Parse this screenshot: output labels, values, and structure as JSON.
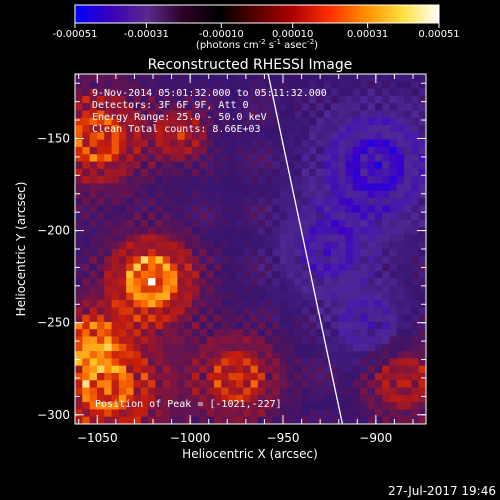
{
  "chart_data": {
    "type": "heatmap",
    "title": "Reconstructed RHESSI Image",
    "xlabel": "Heliocentric X (arcsec)",
    "ylabel": "Heliocentric Y (arcsec)",
    "xlim": [
      -1062,
      -873
    ],
    "ylim": [
      -305,
      -115
    ],
    "x_ticks": [
      -1050,
      -1000,
      -950,
      -900
    ],
    "x_tick_labels": [
      "−1050",
      "−1000",
      "−950",
      "−900"
    ],
    "y_ticks": [
      -150,
      -200,
      -250,
      -300
    ],
    "y_tick_labels": [
      "−150",
      "−200",
      "−250",
      "−300"
    ],
    "colorbar": {
      "ticks": [
        -0.00051,
        -0.00031,
        -0.0001,
        0.0001,
        0.00031,
        0.00051
      ],
      "tick_labels": [
        "-0.00051",
        "-0.00031",
        "-0.00010",
        "0.00010",
        "0.00031",
        "0.00051"
      ],
      "unit_main": "(photons cm",
      "unit_sup1": "-2",
      "unit_mid": " s",
      "unit_sup2": "-1",
      "unit_mid2": " asec",
      "unit_sup3": "-2",
      "unit_end": ")",
      "colors": [
        "#0000ff",
        "#3a00b8",
        "#5a2a8a",
        "#2a0022",
        "#000000",
        "#5a0000",
        "#b00000",
        "#ff3000",
        "#ff9000",
        "#ffe040",
        "#ffffff"
      ]
    },
    "annotations": {
      "line1": "9-Nov-2014 05:01:32.000 to 05:11:32.000",
      "line2": "Detectors: 3F 6F 9F, Att 0",
      "line3": "Energy Range: 25.0 - 50.0 keV",
      "line4": "Clean    Total counts: 8.66E+03",
      "peak": "Position of Peak = [-1021,-227]"
    },
    "peak_position": [
      -1021,
      -227
    ],
    "limb_line": [
      [
        -958,
        -115
      ],
      [
        -918,
        -305
      ]
    ],
    "hot_spots": [
      {
        "x": -1021,
        "y": -227,
        "amp": 1.0,
        "r": 16
      },
      {
        "x": -1050,
        "y": -150,
        "amp": 0.75,
        "r": 18
      },
      {
        "x": -1005,
        "y": -148,
        "amp": 0.55,
        "r": 10
      },
      {
        "x": -1045,
        "y": -285,
        "amp": 0.8,
        "r": 22
      },
      {
        "x": -975,
        "y": -280,
        "amp": 0.65,
        "r": 16
      },
      {
        "x": -885,
        "y": -282,
        "amp": 0.55,
        "r": 14
      },
      {
        "x": -1055,
        "y": -260,
        "amp": 0.6,
        "r": 12
      }
    ],
    "cold_spots": [
      {
        "x": -900,
        "y": -165,
        "amp": 0.8,
        "r": 22
      },
      {
        "x": -925,
        "y": -210,
        "amp": 0.55,
        "r": 18
      },
      {
        "x": -905,
        "y": -250,
        "amp": 0.5,
        "r": 14
      }
    ]
  },
  "footer": {
    "timestamp": "27-Jul-2017 19:46"
  }
}
